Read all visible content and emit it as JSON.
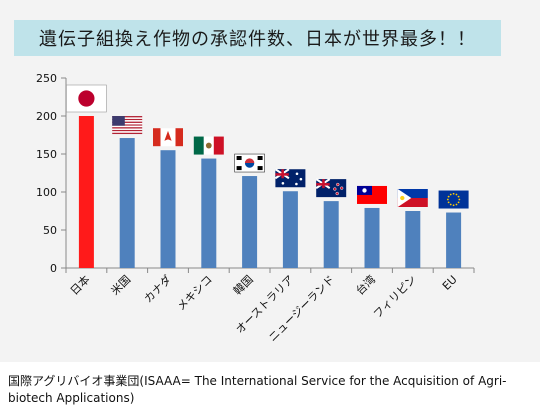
{
  "chart_data": {
    "type": "bar",
    "title": "遺伝子組換え作物の承認件数、日本が世界最多！！",
    "categories": [
      "日本",
      "米国",
      "カナダ",
      "メキシコ",
      "韓国",
      "オーストラリア",
      "ニュージーランド",
      "台湾",
      "フィリピン",
      "EU"
    ],
    "values": [
      200,
      171,
      155,
      144,
      121,
      101,
      88,
      79,
      75,
      73
    ],
    "highlight_color": "#ff1a1a",
    "bar_color": "#4f81bd",
    "ylim": [
      0,
      250
    ],
    "yticks": [
      0,
      50,
      100,
      150,
      200,
      250
    ],
    "xlabel": "",
    "ylabel": "",
    "grid": false,
    "flags": [
      "japan-flag",
      "usa-flag",
      "canada-flag",
      "mexico-flag",
      "korea-flag",
      "australia-flag",
      "new-zealand-flag",
      "taiwan-flag",
      "philippines-flag",
      "eu-flag"
    ]
  },
  "source": "国際アグリバイオ事業団(ISAAA= The International Service for the Acquisition of Agri-biotech Applications)"
}
